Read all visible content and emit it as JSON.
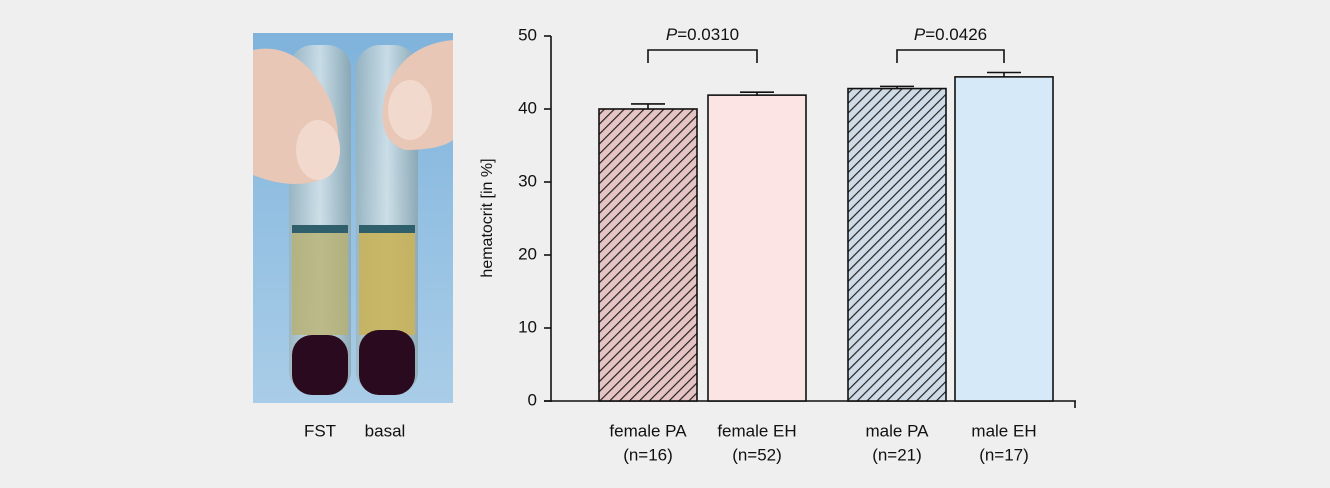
{
  "photo": {
    "labels": [
      "FST",
      "basal"
    ]
  },
  "chart_data": {
    "type": "bar",
    "ylabel": "hematocrit [in %]",
    "categories": [
      "female PA",
      "female EH",
      "male PA",
      "male EH"
    ],
    "sample_sizes": [
      "(n=16)",
      "(n=52)",
      "(n=21)",
      "(n=17)"
    ],
    "values": [
      40.0,
      41.9,
      42.8,
      44.4
    ],
    "errors": [
      0.7,
      0.4,
      0.3,
      0.6
    ],
    "colors": [
      "#e6c4c4",
      "#fde4e4",
      "#cfdce8",
      "#d5e9f8"
    ],
    "hatched": [
      true,
      false,
      true,
      false
    ],
    "ylim": [
      0,
      50
    ],
    "yticks": [
      0,
      10,
      20,
      30,
      40,
      50
    ],
    "comparisons": [
      {
        "symbol": "P",
        "label": "=0.0310"
      },
      {
        "symbol": "P",
        "label": "=0.0426"
      }
    ]
  }
}
